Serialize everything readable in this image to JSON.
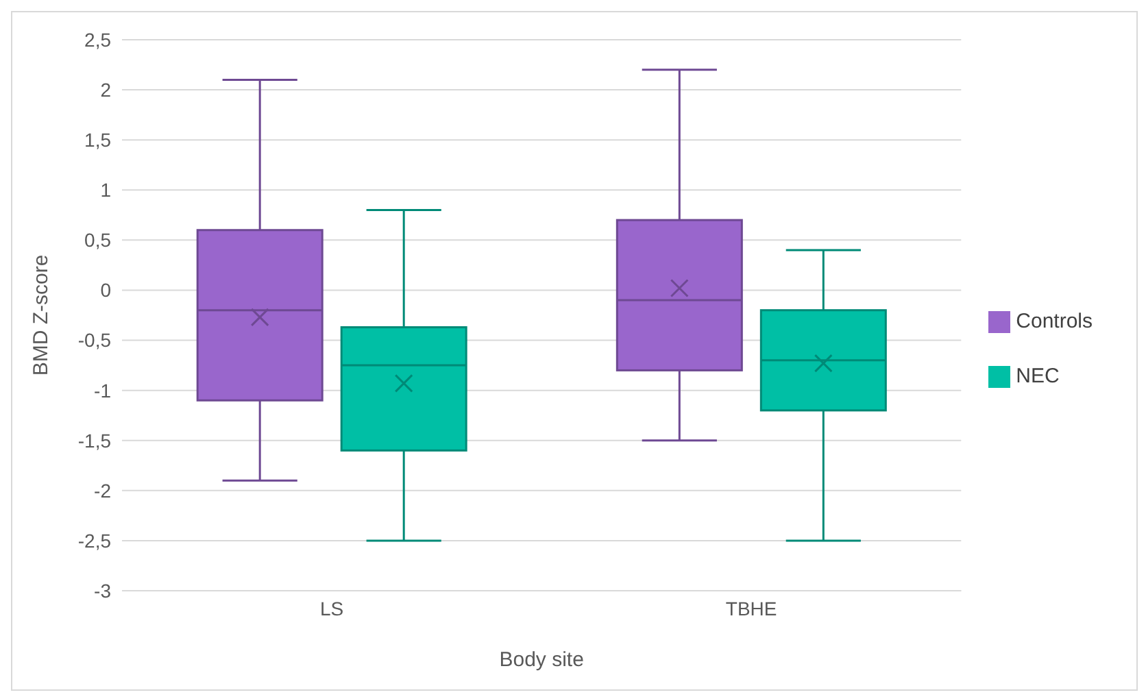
{
  "chart_data": {
    "type": "box",
    "xlabel": "Body site",
    "ylabel": "BMD Z-score",
    "categories": [
      "LS",
      "TBHE"
    ],
    "ylim": [
      -3,
      2.5
    ],
    "yticks": [
      {
        "value": -3,
        "label": "-3"
      },
      {
        "value": -2.5,
        "label": "-2,5"
      },
      {
        "value": -2,
        "label": "-2"
      },
      {
        "value": -1.5,
        "label": "-1,5"
      },
      {
        "value": -1,
        "label": "-1"
      },
      {
        "value": -0.5,
        "label": "-0,5"
      },
      {
        "value": 0,
        "label": "0"
      },
      {
        "value": 0.5,
        "label": "0,5"
      },
      {
        "value": 1,
        "label": "1"
      },
      {
        "value": 1.5,
        "label": "1,5"
      },
      {
        "value": 2,
        "label": "2"
      },
      {
        "value": 2.5,
        "label": "2,5"
      }
    ],
    "grid": "y",
    "legend": "right",
    "marker": "cross",
    "series": [
      {
        "name": "Controls",
        "color": "#9966cc",
        "boxes": [
          {
            "low": -1.9,
            "q1": -1.1,
            "median": -0.2,
            "q3": 0.6,
            "high": 2.1,
            "mean": -0.27
          },
          {
            "low": -1.5,
            "q1": -0.8,
            "median": -0.1,
            "q3": 0.7,
            "high": 2.2,
            "mean": 0.02
          }
        ]
      },
      {
        "name": "NEC",
        "color": "#00bfa5",
        "boxes": [
          {
            "low": -2.5,
            "q1": -1.6,
            "median": -0.75,
            "q3": -0.37,
            "high": 0.8,
            "mean": -0.93
          },
          {
            "low": -2.5,
            "q1": -1.2,
            "median": -0.7,
            "q3": -0.2,
            "high": 0.4,
            "mean": -0.73
          }
        ]
      }
    ]
  }
}
